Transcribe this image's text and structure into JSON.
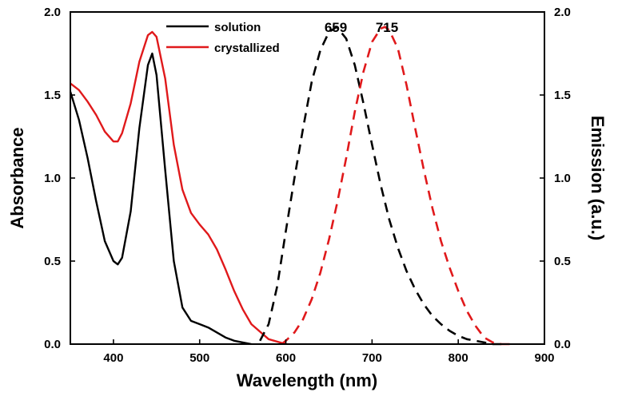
{
  "chart_data": {
    "type": "line",
    "xlabel": "Wavelength (nm)",
    "ylabel_left": "Absorbance",
    "ylabel_right": "Emission (a.u.)",
    "xlim": [
      350,
      900
    ],
    "ylim_left": [
      0.0,
      2.0
    ],
    "ylim_right": [
      0.0,
      2.0
    ],
    "x_ticks": [
      400,
      500,
      600,
      700,
      800,
      900
    ],
    "x_tick_labels": [
      "400",
      "500",
      "600",
      "700",
      "800",
      "900"
    ],
    "y_ticks": [
      0.0,
      0.5,
      1.0,
      1.5,
      2.0
    ],
    "y_tick_labels": [
      "0.0",
      "0.5",
      "1.0",
      "1.5",
      "2.0"
    ],
    "legend": {
      "placement": "top-center",
      "entries": [
        {
          "label": "solution",
          "color": "#000000"
        },
        {
          "label": "crystallized",
          "color": "#e0191b"
        }
      ]
    },
    "annotations": [
      {
        "text": "659",
        "x": 659
      },
      {
        "text": "715",
        "x": 715
      }
    ],
    "series": [
      {
        "name": "solution absorbance",
        "color": "#000000",
        "style": "solid",
        "axis": "left",
        "x": [
          350,
          360,
          370,
          380,
          390,
          400,
          405,
          410,
          420,
          430,
          440,
          445,
          450,
          460,
          470,
          480,
          490,
          500,
          510,
          520,
          530,
          540,
          550,
          560
        ],
        "y": [
          1.52,
          1.35,
          1.12,
          0.86,
          0.62,
          0.5,
          0.48,
          0.52,
          0.8,
          1.3,
          1.68,
          1.75,
          1.62,
          1.05,
          0.5,
          0.22,
          0.14,
          0.12,
          0.1,
          0.07,
          0.04,
          0.02,
          0.01,
          0.0
        ]
      },
      {
        "name": "crystallized absorbance",
        "color": "#e0191b",
        "style": "solid",
        "axis": "left",
        "x": [
          350,
          360,
          370,
          380,
          390,
          400,
          405,
          410,
          420,
          430,
          440,
          445,
          450,
          460,
          470,
          480,
          490,
          500,
          510,
          520,
          530,
          540,
          550,
          560,
          580,
          600
        ],
        "y": [
          1.57,
          1.53,
          1.46,
          1.38,
          1.28,
          1.22,
          1.22,
          1.27,
          1.45,
          1.7,
          1.86,
          1.88,
          1.85,
          1.6,
          1.2,
          0.93,
          0.79,
          0.72,
          0.66,
          0.57,
          0.45,
          0.32,
          0.21,
          0.12,
          0.03,
          0.0
        ]
      },
      {
        "name": "solution emission",
        "color": "#000000",
        "style": "dashed",
        "axis": "right",
        "x": [
          570,
          580,
          590,
          600,
          610,
          620,
          630,
          640,
          650,
          659,
          670,
          680,
          690,
          700,
          710,
          720,
          730,
          740,
          750,
          760,
          770,
          780,
          790,
          800,
          810,
          820,
          830,
          840,
          850
        ],
        "y": [
          0.02,
          0.12,
          0.35,
          0.68,
          1.0,
          1.3,
          1.58,
          1.77,
          1.88,
          1.91,
          1.84,
          1.68,
          1.45,
          1.2,
          0.96,
          0.75,
          0.58,
          0.44,
          0.33,
          0.24,
          0.17,
          0.12,
          0.08,
          0.05,
          0.03,
          0.02,
          0.01,
          0.0,
          0.0
        ]
      },
      {
        "name": "crystallized emission",
        "color": "#e0191b",
        "style": "dashed",
        "axis": "right",
        "x": [
          595,
          600,
          610,
          620,
          630,
          640,
          650,
          660,
          670,
          680,
          690,
          700,
          710,
          715,
          720,
          730,
          740,
          750,
          760,
          770,
          780,
          790,
          800,
          810,
          820,
          830,
          840,
          850,
          860
        ],
        "y": [
          0.0,
          0.02,
          0.07,
          0.15,
          0.27,
          0.43,
          0.63,
          0.86,
          1.12,
          1.4,
          1.64,
          1.82,
          1.9,
          1.91,
          1.89,
          1.78,
          1.56,
          1.3,
          1.05,
          0.82,
          0.62,
          0.46,
          0.32,
          0.2,
          0.11,
          0.04,
          0.01,
          0.0,
          0.0
        ]
      }
    ]
  }
}
